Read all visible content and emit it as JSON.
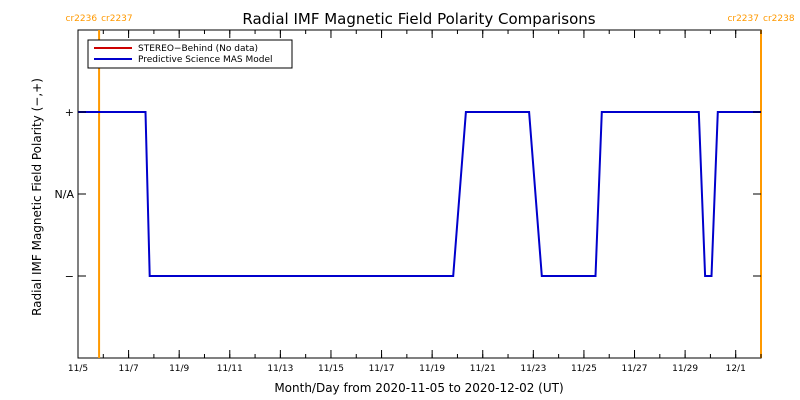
{
  "chart_data": {
    "type": "line",
    "title": "Radial IMF Magnetic Field Polarity Comparisons",
    "xlabel": "Month/Day from 2020-11-05 to 2020-12-02 (UT)",
    "ylabel": "Radial IMF Magnetic Field Polarity (−,+)",
    "x_start": "2020-11-05",
    "x_end": "2020-12-02",
    "xlim": [
      "2020-11-05T00:00",
      "2020-12-02T00:00"
    ],
    "ylim": [
      -2,
      2
    ],
    "x_ticks": [
      {
        "at": "2020-11-05",
        "label": "11/5"
      },
      {
        "at": "2020-11-07",
        "label": "11/7"
      },
      {
        "at": "2020-11-09",
        "label": "11/9"
      },
      {
        "at": "2020-11-11",
        "label": "11/11"
      },
      {
        "at": "2020-11-13",
        "label": "11/13"
      },
      {
        "at": "2020-11-15",
        "label": "11/15"
      },
      {
        "at": "2020-11-17",
        "label": "11/17"
      },
      {
        "at": "2020-11-19",
        "label": "11/19"
      },
      {
        "at": "2020-11-21",
        "label": "11/21"
      },
      {
        "at": "2020-11-23",
        "label": "11/23"
      },
      {
        "at": "2020-11-25",
        "label": "11/25"
      },
      {
        "at": "2020-11-27",
        "label": "11/27"
      },
      {
        "at": "2020-11-29",
        "label": "11/29"
      },
      {
        "at": "2020-12-01",
        "label": "12/1"
      }
    ],
    "y_ticks": [
      {
        "value": 1,
        "label": "+"
      },
      {
        "value": 0,
        "label": "N/A"
      },
      {
        "value": -1,
        "label": "−"
      }
    ],
    "grid": false,
    "legend_position": "top-left",
    "series": [
      {
        "name": "STEREO−Behind (No data)",
        "color": "#cc0000",
        "x": [],
        "values": []
      },
      {
        "name": "Predictive Science MAS Model",
        "color": "#0000cc",
        "x": [
          "2020-11-05T00:00",
          "2020-11-07T16:00",
          "2020-11-07T20:00",
          "2020-11-19T20:00",
          "2020-11-20T08:00",
          "2020-11-22T20:00",
          "2020-11-23T08:00",
          "2020-11-25T11:00",
          "2020-11-25T17:00",
          "2020-11-29T13:00",
          "2020-11-29T19:00",
          "2020-11-30T01:00",
          "2020-11-30T07:00",
          "2020-12-02T00:00"
        ],
        "values": [
          1,
          1,
          -1,
          -1,
          1,
          1,
          -1,
          -1,
          1,
          1,
          -1,
          -1,
          1,
          1
        ]
      }
    ],
    "carrington_markers": [
      {
        "at": "2020-11-05T20:00",
        "label_left": "cr2236",
        "label_right": "cr2237",
        "color": "#ff9900"
      },
      {
        "at": "2020-12-02T00:00",
        "label_left": "cr2237",
        "label_right": "cr2238",
        "color": "#ff9900"
      }
    ]
  }
}
